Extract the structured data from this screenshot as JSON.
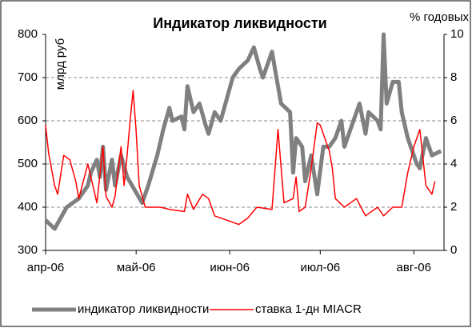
{
  "chart_data": {
    "type": "line",
    "title": "Индикатор ликвидности",
    "y_label": "млрд руб",
    "y2_label": "% годовых",
    "xlim": [
      0,
      132
    ],
    "xticks": [
      {
        "value": 0,
        "label": "апр-06"
      },
      {
        "value": 30,
        "label": "май-06"
      },
      {
        "value": 61,
        "label": "июн-06"
      },
      {
        "value": 91,
        "label": "июл-06"
      },
      {
        "value": 122,
        "label": "авг-06"
      }
    ],
    "ylim": [
      300,
      800
    ],
    "yticks": [
      300,
      400,
      500,
      600,
      700,
      800
    ],
    "y2lim": [
      0,
      10
    ],
    "y2ticks": [
      0,
      2,
      4,
      6,
      8,
      10
    ],
    "grid": true,
    "legend": "bottom",
    "series": [
      {
        "name": "индикатор ликвидности",
        "color": "#808080",
        "axis": "y",
        "x": [
          0,
          3,
          7,
          11,
          14,
          15,
          17,
          18,
          19,
          20,
          22,
          23,
          25,
          27,
          32,
          34,
          37,
          39,
          41,
          42,
          45,
          46,
          47,
          49,
          51,
          53,
          54,
          56,
          58,
          62,
          64,
          67,
          69,
          71,
          72,
          74,
          75,
          76,
          78,
          81,
          82,
          83,
          85,
          86,
          88,
          90,
          92,
          94,
          96,
          98,
          99,
          102,
          104,
          106,
          107,
          110,
          111,
          112,
          113,
          115,
          117,
          118,
          120,
          123,
          124,
          126,
          128,
          131
        ],
        "values": [
          370,
          350,
          400,
          420,
          450,
          480,
          510,
          470,
          540,
          440,
          510,
          450,
          520,
          470,
          410,
          450,
          520,
          580,
          630,
          600,
          610,
          580,
          680,
          620,
          640,
          590,
          570,
          620,
          600,
          700,
          720,
          740,
          770,
          720,
          700,
          740,
          760,
          720,
          640,
          620,
          480,
          560,
          540,
          460,
          520,
          430,
          540,
          540,
          560,
          600,
          540,
          600,
          640,
          570,
          620,
          600,
          580,
          800,
          640,
          690,
          690,
          620,
          560,
          500,
          490,
          560,
          520,
          530
        ]
      },
      {
        "name": "ставка 1-дн MIACR",
        "color": "#ff0000",
        "axis": "y2",
        "x": [
          0,
          1,
          3,
          4,
          6,
          8,
          10,
          11,
          14,
          16,
          17,
          19,
          20,
          22,
          23,
          25,
          26,
          27,
          28,
          29,
          30,
          31,
          33,
          35,
          38,
          41,
          46,
          47,
          49,
          52,
          54,
          56,
          60,
          64,
          67,
          70,
          75,
          77,
          79,
          82,
          83,
          84,
          86,
          88,
          90,
          91,
          94,
          95,
          96,
          99,
          103,
          106,
          110,
          112,
          115,
          118,
          120,
          122,
          124,
          126,
          128,
          129
        ],
        "values": [
          5.8,
          4.5,
          3.0,
          2.6,
          4.4,
          4.2,
          3.2,
          2.4,
          4.0,
          2.8,
          2.2,
          4.8,
          2.5,
          2.0,
          2.5,
          4.8,
          3.0,
          4.4,
          6.0,
          7.4,
          5.5,
          3.0,
          2.0,
          2.0,
          2.0,
          1.9,
          1.8,
          2.6,
          1.9,
          2.6,
          2.4,
          1.6,
          1.4,
          1.2,
          1.5,
          2.0,
          1.9,
          5.6,
          2.2,
          2.4,
          3.4,
          1.8,
          2.0,
          3.8,
          5.9,
          5.8,
          4.6,
          3.8,
          2.4,
          2.0,
          2.4,
          1.6,
          2.0,
          1.6,
          2.0,
          2.0,
          3.6,
          4.8,
          5.6,
          3.0,
          2.6,
          3.2
        ]
      }
    ]
  }
}
